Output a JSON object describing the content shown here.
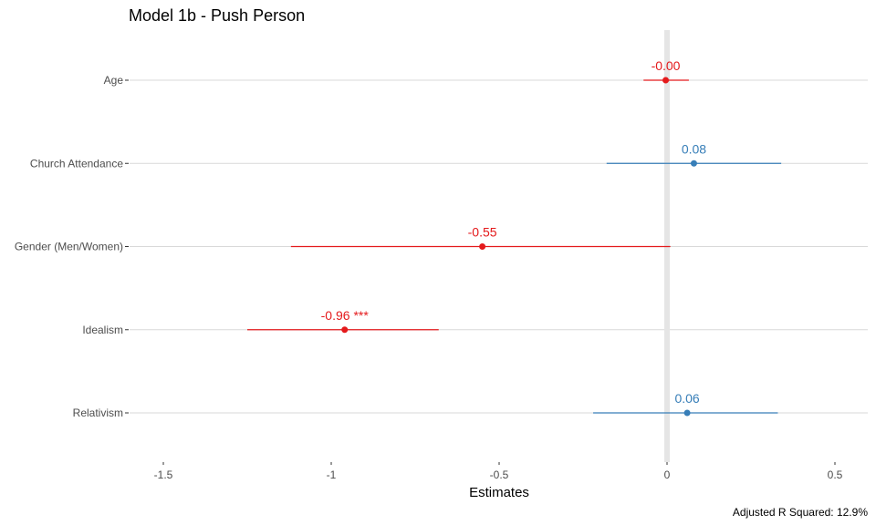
{
  "chart_data": {
    "type": "forest",
    "title": "Model 1b - Push Person",
    "xlabel": "Estimates",
    "caption": "Adjusted R Squared: 12.9%",
    "xlim": [
      -1.63,
      0.6
    ],
    "x_ticks": [
      -1.5,
      -1,
      -0.5,
      0,
      0.5
    ],
    "x_tick_labels": [
      "-1.5",
      "-1",
      "-0.5",
      "0",
      "0.5"
    ],
    "zero_line": 0,
    "grid": "horizontal",
    "legend": "none",
    "colors": {
      "negative": "#e41a1c",
      "positive": "#377eb8",
      "zero_line": "#e5e5e5",
      "grid": "#d9d9d9"
    },
    "terms": [
      {
        "name": "Age",
        "estimate": -0.004,
        "ci_low": -0.07,
        "ci_high": 0.065,
        "label": "-0.00",
        "sign": "negative"
      },
      {
        "name": "Church Attendance",
        "estimate": 0.08,
        "ci_low": -0.18,
        "ci_high": 0.34,
        "label": "0.08",
        "sign": "positive"
      },
      {
        "name": "Gender (Men/Women)",
        "estimate": -0.55,
        "ci_low": -1.12,
        "ci_high": 0.01,
        "label": "-0.55",
        "sign": "negative"
      },
      {
        "name": "Idealism",
        "estimate": -0.96,
        "ci_low": -1.25,
        "ci_high": -0.68,
        "label": "-0.96 ***",
        "sign": "negative"
      },
      {
        "name": "Relativism",
        "estimate": 0.06,
        "ci_low": -0.22,
        "ci_high": 0.33,
        "label": "0.06",
        "sign": "positive"
      }
    ]
  }
}
